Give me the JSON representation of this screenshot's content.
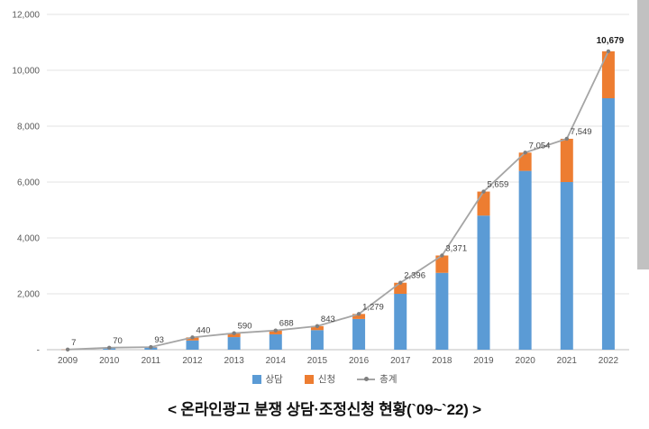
{
  "caption": "< 온라인광고 분쟁 상담·조정신청 현황(`09~`22) >",
  "chart_data": {
    "type": "bar",
    "subtype": "stacked-bar-with-total-line",
    "categories": [
      "2009",
      "2010",
      "2011",
      "2012",
      "2013",
      "2014",
      "2015",
      "2016",
      "2017",
      "2018",
      "2019",
      "2020",
      "2021",
      "2022"
    ],
    "series": [
      {
        "name": "상담",
        "type": "bar",
        "color": "#5B9BD5",
        "values": [
          5,
          60,
          80,
          330,
          450,
          550,
          700,
          1100,
          2000,
          2750,
          4800,
          6400,
          6000,
          9000
        ]
      },
      {
        "name": "신청",
        "type": "bar",
        "color": "#ED7D31",
        "values": [
          2,
          10,
          13,
          110,
          140,
          138,
          143,
          179,
          396,
          621,
          859,
          654,
          1549,
          1679
        ]
      },
      {
        "name": "총계",
        "type": "line",
        "color": "#A5A5A5",
        "marker_color": "#7F7F7F",
        "values": [
          7,
          70,
          93,
          440,
          590,
          688,
          843,
          1279,
          2396,
          3371,
          5659,
          7054,
          7549,
          10679
        ]
      }
    ],
    "data_labels": [
      "7",
      "70",
      "93",
      "440",
      "590",
      "688",
      "843",
      "1,279",
      "2,396",
      "3,371",
      "5,659",
      "7,054",
      "7,549",
      "10,679"
    ],
    "y_ticks": [
      "12,000",
      "10,000",
      "8,000",
      "6,000",
      "4,000",
      "2,000",
      "-"
    ],
    "ylim": [
      0,
      12000
    ],
    "grid": true,
    "legend_position": "bottom",
    "axis_text_color": "#595959",
    "label_text_color": "#404040",
    "gridline_color": "#e3e3e3",
    "baseline_color": "#bfbfbf"
  }
}
